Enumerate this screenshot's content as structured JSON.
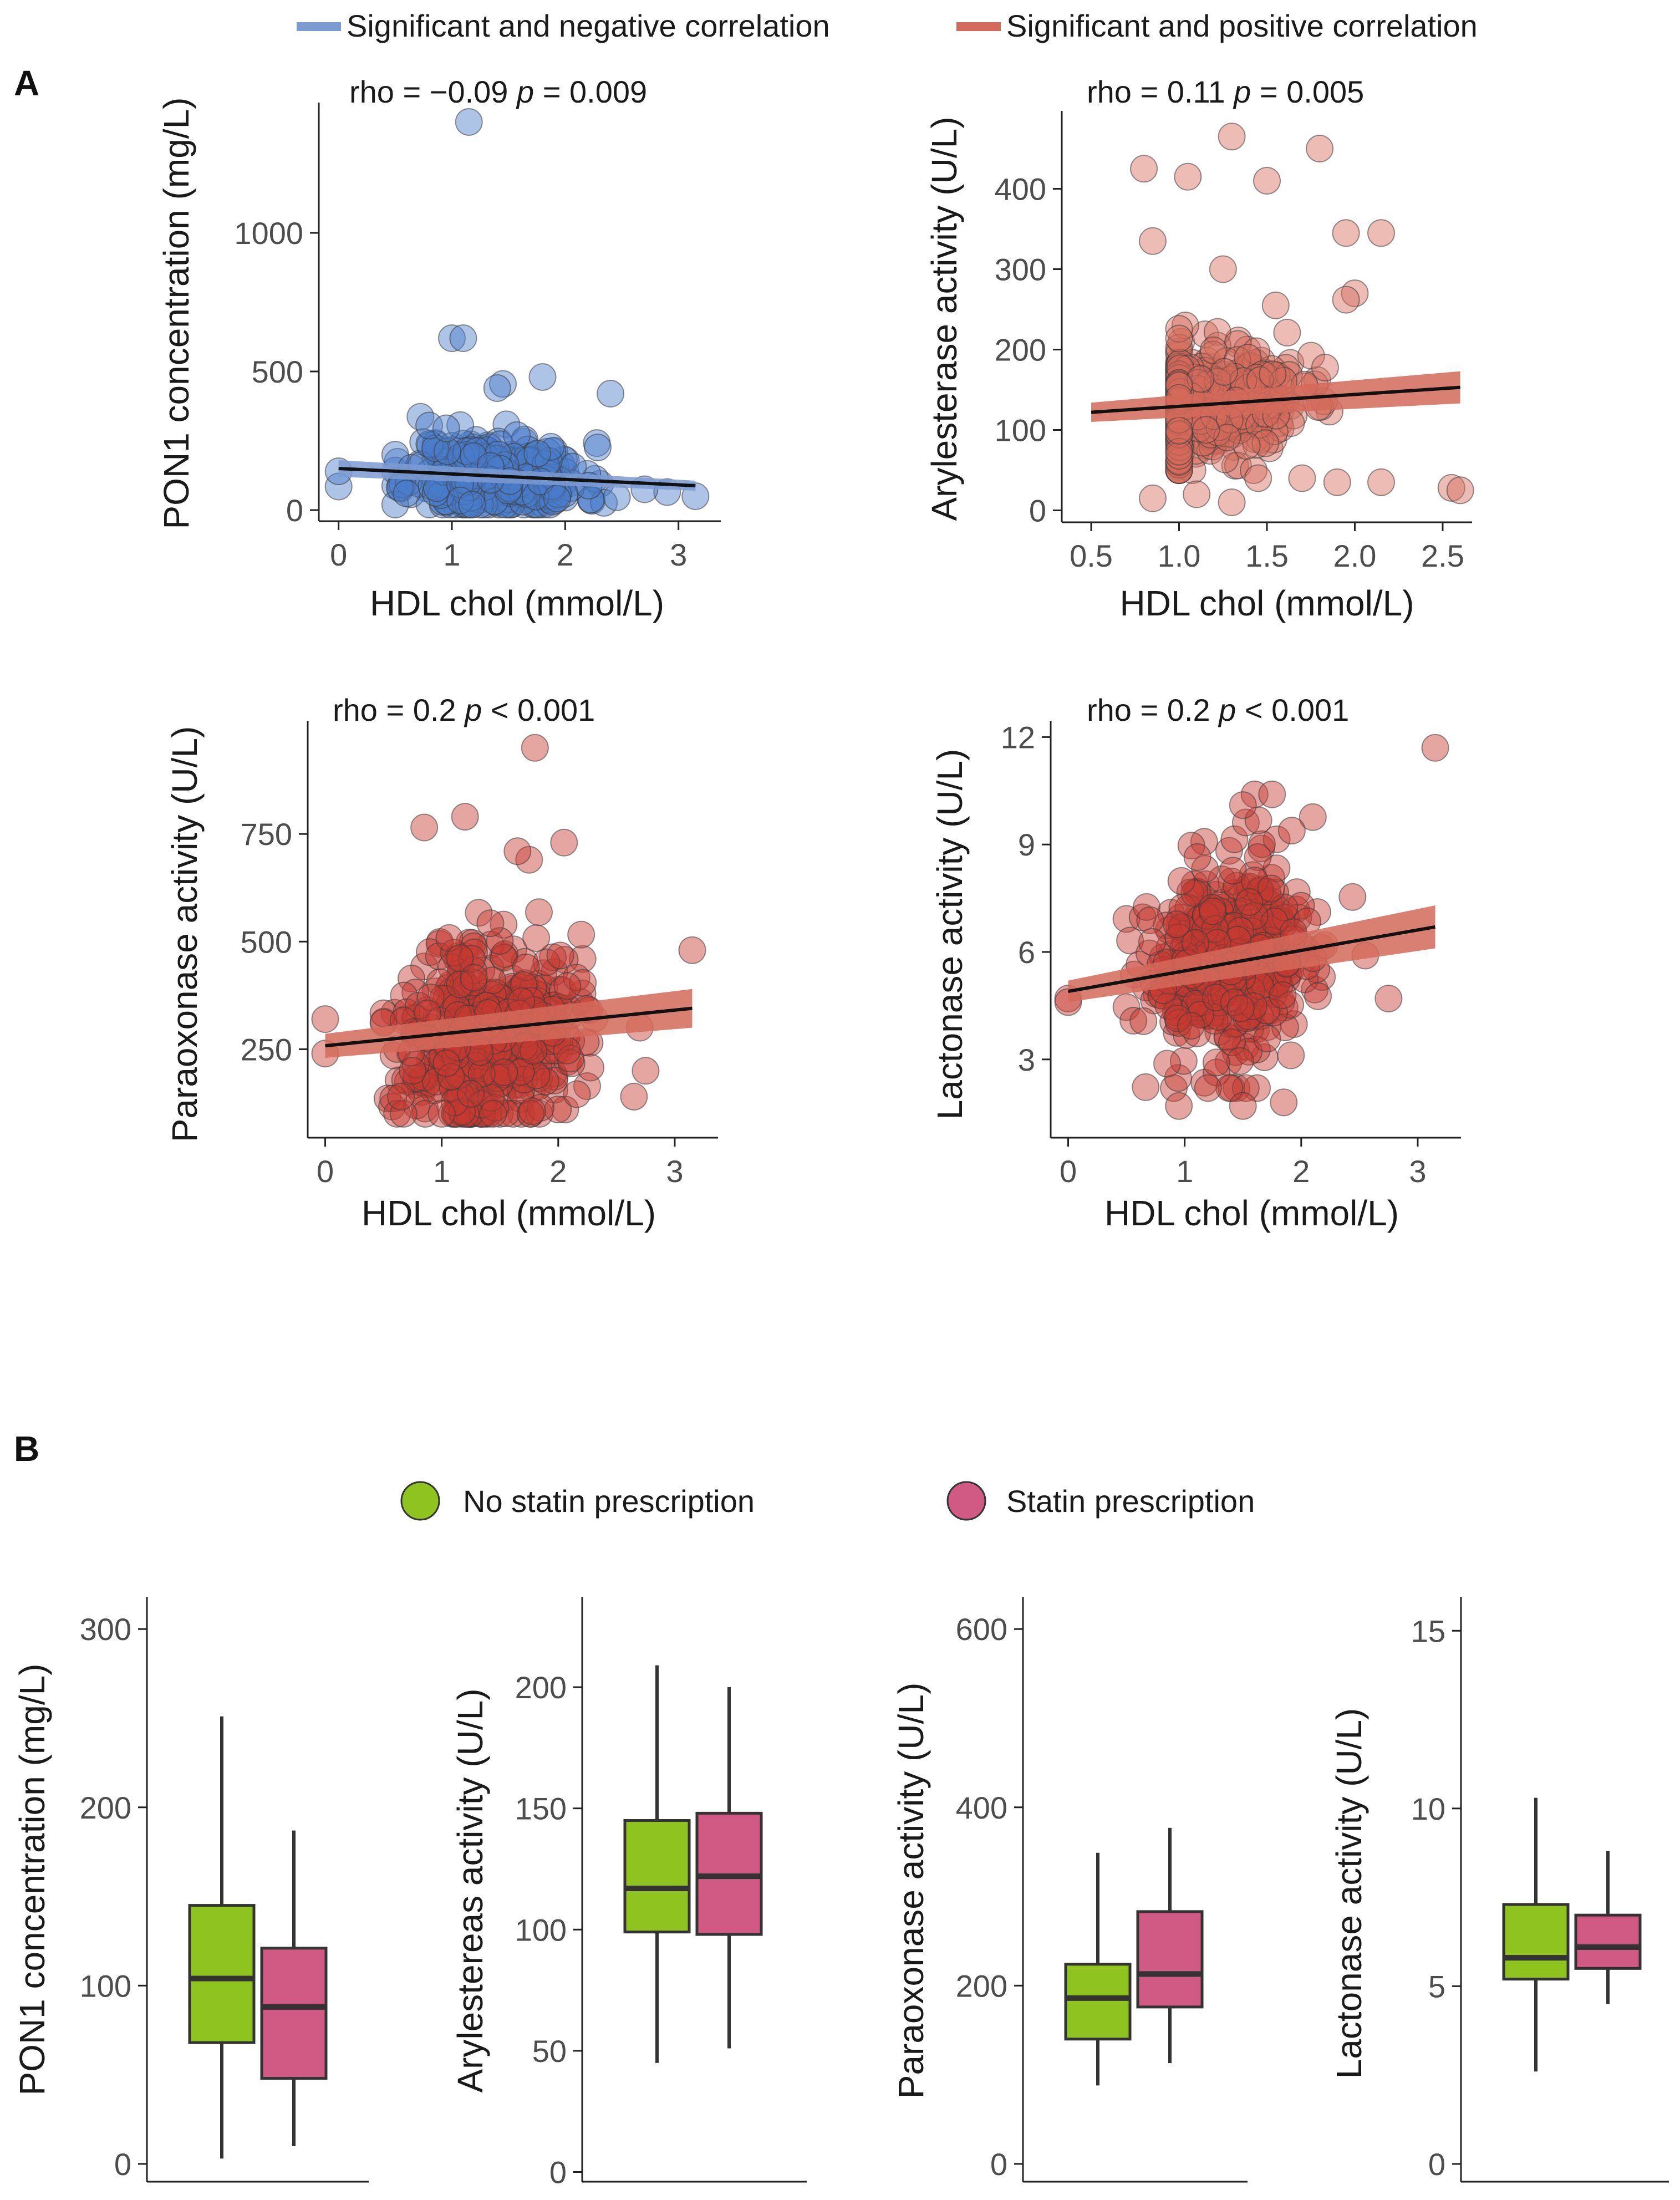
{
  "panel_labels": {
    "a": "A",
    "b": "B"
  },
  "legend_a": {
    "neg_label": "Significant and negative correlation",
    "pos_label": "Significant and positive correlation",
    "neg_color": "#7b9bd3",
    "pos_color": "#d46a5b"
  },
  "legend_b": {
    "no_statin_label": "No statin prescription",
    "statin_label": "Statin prescription",
    "no_statin_color": "#8fc31f",
    "statin_color": "#d05a83"
  },
  "chart_data": [
    {
      "type": "scatter",
      "id": "pon1",
      "annotation": {
        "rho": "rho = −0.09",
        "p_symbol": "p",
        "p_text": "= 0.009"
      },
      "xlabel": "HDL chol (mmol/L)",
      "ylabel": "PON1 concentration (mg/L)",
      "xlim": [
        -0.15,
        3.3
      ],
      "ylim": [
        -30,
        1450
      ],
      "xticks": [
        0,
        1,
        2,
        3
      ],
      "xtick_labels": [
        "0",
        "1",
        "2",
        "3"
      ],
      "yticks": [
        0,
        500,
        1000
      ],
      "ytick_labels": [
        "0",
        "500",
        "1000"
      ],
      "fill": "#4a7dc9",
      "band_color": "#7b9bd3",
      "fit_line": {
        "x": [
          0,
          3.15
        ],
        "y": [
          150,
          88
        ]
      },
      "band_halfwidth": [
        30,
        18
      ],
      "cloud": {
        "n": 360,
        "x_mean": 1.4,
        "x_sd": 0.38,
        "y_mean": 120,
        "y_sd": 70,
        "y_min": 20,
        "y_max": 470,
        "seed": 11
      },
      "points": [
        [
          1.15,
          1400
        ],
        [
          1.0,
          620
        ],
        [
          1.1,
          620
        ],
        [
          0.0,
          85
        ],
        [
          0.0,
          140
        ],
        [
          3.15,
          50
        ],
        [
          2.9,
          65
        ],
        [
          2.7,
          75
        ],
        [
          2.4,
          420
        ],
        [
          1.8,
          480
        ],
        [
          1.45,
          455
        ],
        [
          1.4,
          440
        ],
        [
          0.6,
          60
        ],
        [
          0.8,
          305
        ],
        [
          0.95,
          295
        ]
      ]
    },
    {
      "type": "scatter",
      "id": "arylesterase",
      "annotation": {
        "rho": "rho = 0.11",
        "p_symbol": "p",
        "p_text": "= 0.005"
      },
      "xlabel": "HDL chol (mmol/L)",
      "ylabel": "Arylesterase activity (U/L)",
      "xlim": [
        0.38,
        2.62
      ],
      "ylim": [
        -10,
        490
      ],
      "xticks": [
        0.5,
        1.0,
        1.5,
        2.0,
        2.5
      ],
      "xtick_labels": [
        "0.5",
        "1.0",
        "1.5",
        "2.0",
        "2.5"
      ],
      "yticks": [
        0,
        100,
        200,
        300,
        400
      ],
      "ytick_labels": [
        "0",
        "100",
        "200",
        "300",
        "400"
      ],
      "fill": "#d46a5b",
      "band_color": "#d46a5b",
      "fit_line": {
        "x": [
          0.5,
          2.6
        ],
        "y": [
          122,
          153
        ]
      },
      "band_halfwidth": [
        12,
        20
      ],
      "cloud": {
        "n": 440,
        "x_mean": 1.05,
        "x_sd": 0.32,
        "y_mean": 130,
        "y_sd": 35,
        "y_min": 50,
        "y_max": 230,
        "seed": 23
      },
      "points": [
        [
          1.3,
          465
        ],
        [
          1.8,
          450
        ],
        [
          0.8,
          425
        ],
        [
          1.05,
          415
        ],
        [
          1.5,
          410
        ],
        [
          0.85,
          335
        ],
        [
          2.15,
          345
        ],
        [
          1.95,
          345
        ],
        [
          1.25,
          300
        ],
        [
          2.0,
          270
        ],
        [
          1.95,
          262
        ],
        [
          1.55,
          255
        ],
        [
          2.55,
          28
        ],
        [
          2.6,
          25
        ],
        [
          2.15,
          35
        ],
        [
          0.85,
          15
        ],
        [
          1.1,
          20
        ],
        [
          1.3,
          10
        ],
        [
          1.45,
          40
        ],
        [
          1.7,
          40
        ],
        [
          1.9,
          35
        ]
      ]
    },
    {
      "type": "scatter",
      "id": "paraoxonase",
      "annotation": {
        "rho": "rho = 0.2",
        "p_symbol": "p",
        "p_text": "< 0.001"
      },
      "xlabel": "HDL chol (mmol/L)",
      "ylabel": "Paraoxonase activity (U/L)",
      "xlim": [
        -0.15,
        3.3
      ],
      "ylim": [
        60,
        1000
      ],
      "xticks": [
        0,
        1,
        2,
        3
      ],
      "xtick_labels": [
        "0",
        "1",
        "2",
        "3"
      ],
      "yticks": [
        250,
        500,
        750
      ],
      "ytick_labels": [
        "250",
        "500",
        "750"
      ],
      "fill": "#c53a30",
      "band_color": "#d46a5b",
      "fit_line": {
        "x": [
          0,
          3.15
        ],
        "y": [
          258,
          345
        ]
      },
      "band_halfwidth": [
        28,
        45
      ],
      "cloud": {
        "n": 440,
        "x_mean": 1.4,
        "x_sd": 0.38,
        "y_mean": 290,
        "y_sd": 115,
        "y_min": 100,
        "y_max": 640,
        "seed": 37
      },
      "points": [
        [
          1.8,
          950
        ],
        [
          1.2,
          790
        ],
        [
          0.85,
          765
        ],
        [
          2.05,
          730
        ],
        [
          1.75,
          690
        ],
        [
          1.65,
          710
        ],
        [
          0.0,
          320
        ],
        [
          0.0,
          240
        ],
        [
          3.15,
          480
        ],
        [
          2.7,
          300
        ],
        [
          2.65,
          140
        ],
        [
          2.75,
          200
        ],
        [
          0.65,
          140
        ],
        [
          0.75,
          200
        ],
        [
          1.0,
          100
        ]
      ]
    },
    {
      "type": "scatter",
      "id": "lactonase",
      "annotation": {
        "rho": "rho = 0.2",
        "p_symbol": "p",
        "p_text": "< 0.001"
      },
      "xlabel": "HDL chol (mmol/L)",
      "ylabel": "Lactonase activity (U/L)",
      "xlim": [
        -0.15,
        3.3
      ],
      "ylim": [
        1.0,
        12.3
      ],
      "xticks": [
        0,
        1,
        2,
        3
      ],
      "xtick_labels": [
        "0",
        "1",
        "2",
        "3"
      ],
      "yticks": [
        3,
        6,
        9,
        12
      ],
      "ytick_labels": [
        "3",
        "6",
        "9",
        "12"
      ],
      "fill": "#c53a30",
      "band_color": "#d46a5b",
      "fit_line": {
        "x": [
          0,
          3.15
        ],
        "y": [
          4.9,
          6.7
        ]
      },
      "band_halfwidth": [
        0.3,
        0.6
      ],
      "cloud": {
        "n": 440,
        "x_mean": 1.4,
        "x_sd": 0.38,
        "y_mean": 5.7,
        "y_sd": 1.4,
        "y_min": 2.2,
        "y_max": 9.8,
        "seed": 53
      },
      "points": [
        [
          3.15,
          11.7
        ],
        [
          1.6,
          10.4
        ],
        [
          1.75,
          10.4
        ],
        [
          1.5,
          10.1
        ],
        [
          0.0,
          4.7
        ],
        [
          0.0,
          4.6
        ],
        [
          2.75,
          4.7
        ],
        [
          2.55,
          5.9
        ],
        [
          0.95,
          1.7
        ],
        [
          1.5,
          1.7
        ],
        [
          1.85,
          1.8
        ],
        [
          1.2,
          2.2
        ]
      ]
    },
    {
      "type": "box",
      "id": "box_pon1",
      "ylabel": "PON1 concentration (mg/L)",
      "ylim": [
        -10,
        315
      ],
      "yticks": [
        0,
        100,
        200,
        300
      ],
      "ytick_labels": [
        "0",
        "100",
        "200",
        "300"
      ],
      "groups": [
        {
          "name": "No statin prescription",
          "whisker_low": 3,
          "q1": 68,
          "median": 104,
          "q3": 145,
          "whisker_high": 251
        },
        {
          "name": "Statin prescription",
          "whisker_low": 10,
          "q1": 48,
          "median": 88,
          "q3": 121,
          "whisker_high": 187
        }
      ]
    },
    {
      "type": "box",
      "id": "box_arylesterase",
      "ylabel": "Arylestereas activity (U/L)",
      "ylim": [
        -4,
        235
      ],
      "yticks": [
        0,
        50,
        100,
        150,
        200
      ],
      "ytick_labels": [
        "0",
        "50",
        "100",
        "150",
        "200"
      ],
      "groups": [
        {
          "name": "No statin prescription",
          "whisker_low": 45,
          "q1": 99,
          "median": 117,
          "q3": 145,
          "whisker_high": 209
        },
        {
          "name": "Statin prescription",
          "whisker_low": 51,
          "q1": 98,
          "median": 122,
          "q3": 148,
          "whisker_high": 200
        }
      ]
    },
    {
      "type": "box",
      "id": "box_paraoxonase",
      "ylabel": "Paraoxonase activity (U/L)",
      "ylim": [
        -20,
        630
      ],
      "yticks": [
        0,
        200,
        400,
        600
      ],
      "ytick_labels": [
        "0",
        "200",
        "400",
        "600"
      ],
      "groups": [
        {
          "name": "No statin prescription",
          "whisker_low": 88,
          "q1": 140,
          "median": 186,
          "q3": 224,
          "whisker_high": 349
        },
        {
          "name": "Statin prescription",
          "whisker_low": 113,
          "q1": 176,
          "median": 213,
          "q3": 283,
          "whisker_high": 377
        }
      ]
    },
    {
      "type": "box",
      "id": "box_lactonase",
      "ylabel": "Lactonase activity (U/L)",
      "ylim": [
        -0.5,
        15.8
      ],
      "yticks": [
        0,
        5,
        10,
        15
      ],
      "ytick_labels": [
        "0",
        "5",
        "10",
        "15"
      ],
      "groups": [
        {
          "name": "No statin prescription",
          "whisker_low": 2.6,
          "q1": 5.2,
          "median": 5.8,
          "q3": 7.3,
          "whisker_high": 10.3
        },
        {
          "name": "Statin prescription",
          "whisker_low": 4.5,
          "q1": 5.5,
          "median": 6.1,
          "q3": 7.0,
          "whisker_high": 8.8
        }
      ]
    }
  ]
}
